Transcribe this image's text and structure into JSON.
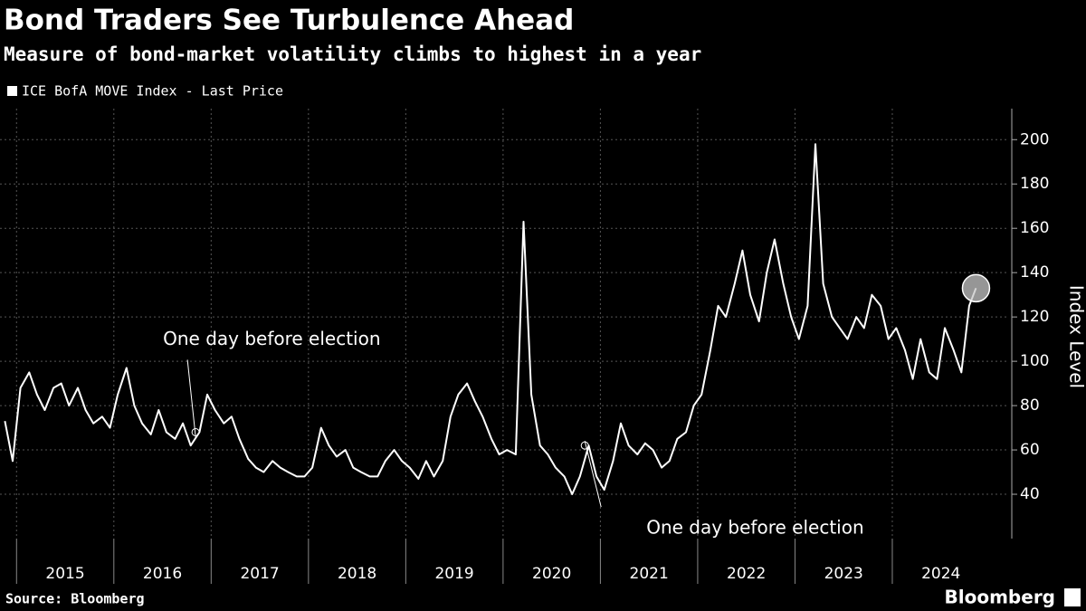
{
  "chart_data": {
    "type": "line",
    "title": "Bond Traders See Turbulence Ahead",
    "subtitle": "Measure of bond-market volatility climbs to highest in a year",
    "y_label": "Index Level",
    "source": "Source: Bloomberg",
    "brand": "Bloomberg",
    "grid": true,
    "legend": "top-left",
    "xlim": [
      2014.83,
      2025.2
    ],
    "ylim": [
      20,
      214
    ],
    "yticks": [
      40,
      60,
      80,
      100,
      120,
      140,
      160,
      180,
      200
    ],
    "xticks": [
      {
        "value": 2015.5,
        "label": "2015"
      },
      {
        "value": 2016.5,
        "label": "2016"
      },
      {
        "value": 2017.5,
        "label": "2017"
      },
      {
        "value": 2018.5,
        "label": "2018"
      },
      {
        "value": 2019.5,
        "label": "2019"
      },
      {
        "value": 2020.5,
        "label": "2020"
      },
      {
        "value": 2021.5,
        "label": "2021"
      },
      {
        "value": 2022.5,
        "label": "2022"
      },
      {
        "value": 2023.5,
        "label": "2023"
      },
      {
        "value": 2024.5,
        "label": "2024"
      }
    ],
    "x": [
      2014.88,
      2014.96,
      2015.04,
      2015.13,
      2015.21,
      2015.29,
      2015.38,
      2015.46,
      2015.54,
      2015.63,
      2015.71,
      2015.79,
      2015.88,
      2015.96,
      2016.04,
      2016.13,
      2016.21,
      2016.29,
      2016.38,
      2016.46,
      2016.54,
      2016.63,
      2016.71,
      2016.79,
      2016.88,
      2016.96,
      2017.04,
      2017.13,
      2017.21,
      2017.29,
      2017.38,
      2017.46,
      2017.54,
      2017.63,
      2017.71,
      2017.79,
      2017.88,
      2017.96,
      2018.04,
      2018.13,
      2018.21,
      2018.29,
      2018.38,
      2018.46,
      2018.54,
      2018.63,
      2018.71,
      2018.79,
      2018.88,
      2018.96,
      2019.04,
      2019.13,
      2019.21,
      2019.29,
      2019.38,
      2019.46,
      2019.54,
      2019.63,
      2019.71,
      2019.79,
      2019.88,
      2019.96,
      2020.04,
      2020.13,
      2020.21,
      2020.29,
      2020.38,
      2020.46,
      2020.54,
      2020.63,
      2020.71,
      2020.79,
      2020.88,
      2020.96,
      2021.04,
      2021.13,
      2021.21,
      2021.29,
      2021.38,
      2021.46,
      2021.54,
      2021.63,
      2021.71,
      2021.79,
      2021.88,
      2021.96,
      2022.04,
      2022.13,
      2022.21,
      2022.29,
      2022.38,
      2022.46,
      2022.54,
      2022.63,
      2022.71,
      2022.79,
      2022.88,
      2022.96,
      2023.04,
      2023.13,
      2023.21,
      2023.29,
      2023.38,
      2023.46,
      2023.54,
      2023.63,
      2023.71,
      2023.79,
      2023.88,
      2023.96,
      2024.04,
      2024.13,
      2024.21,
      2024.29,
      2024.38,
      2024.46,
      2024.54,
      2024.63,
      2024.71,
      2024.79,
      2024.86
    ],
    "series": [
      {
        "name": "ICE BofA MOVE Index - Last Price",
        "color": "#ffffff",
        "values": [
          73,
          55,
          88,
          95,
          85,
          78,
          88,
          90,
          80,
          88,
          78,
          72,
          75,
          70,
          85,
          97,
          80,
          72,
          67,
          78,
          68,
          65,
          72,
          62,
          68,
          85,
          78,
          72,
          75,
          65,
          56,
          52,
          50,
          55,
          52,
          50,
          48,
          48,
          52,
          70,
          62,
          57,
          60,
          52,
          50,
          48,
          48,
          55,
          60,
          55,
          52,
          47,
          55,
          48,
          55,
          75,
          85,
          90,
          82,
          75,
          65,
          58,
          60,
          58,
          163,
          85,
          62,
          58,
          52,
          48,
          40,
          48,
          62,
          48,
          42,
          55,
          72,
          62,
          58,
          63,
          60,
          52,
          55,
          65,
          68,
          80,
          85,
          105,
          125,
          120,
          135,
          150,
          130,
          118,
          140,
          155,
          135,
          120,
          110,
          125,
          198,
          135,
          120,
          115,
          110,
          120,
          115,
          130,
          125,
          110,
          115,
          105,
          92,
          110,
          95,
          92,
          115,
          105,
          95,
          125,
          133
        ]
      }
    ],
    "annotations": [
      {
        "text": "One day before election",
        "x": 2016.84,
        "y": 68
      },
      {
        "text": "One day before election",
        "x": 2020.84,
        "y": 62
      }
    ],
    "highlight": {
      "x": 2024.86,
      "y": 133
    }
  }
}
